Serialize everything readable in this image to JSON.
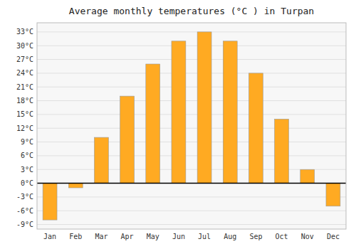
{
  "chart_data": {
    "type": "bar",
    "title": "Average monthly temperatures (°C ) in Turpan",
    "categories": [
      "Jan",
      "Feb",
      "Mar",
      "Apr",
      "May",
      "Jun",
      "Jul",
      "Aug",
      "Sep",
      "Oct",
      "Nov",
      "Dec"
    ],
    "values": [
      -8,
      -1,
      10,
      19,
      26,
      31,
      33,
      31,
      24,
      14,
      3,
      -5
    ],
    "color": "#FFAA22",
    "ylim": [
      -10,
      35
    ],
    "yticks": [
      {
        "value": -9,
        "label": "-9°C"
      },
      {
        "value": -6,
        "label": "-6°C"
      },
      {
        "value": -3,
        "label": "-3°C"
      },
      {
        "value": 0,
        "label": "0°C"
      },
      {
        "value": 3,
        "label": "3°C"
      },
      {
        "value": 6,
        "label": "6°C"
      },
      {
        "value": 9,
        "label": "9°C"
      },
      {
        "value": 12,
        "label": "12°C"
      },
      {
        "value": 15,
        "label": "15°C"
      },
      {
        "value": 18,
        "label": "18°C"
      },
      {
        "value": 21,
        "label": "21°C"
      },
      {
        "value": 24,
        "label": "24°C"
      },
      {
        "value": 27,
        "label": "27°C"
      },
      {
        "value": 30,
        "label": "30°C"
      },
      {
        "value": 33,
        "label": "33°C"
      }
    ],
    "grid": true
  }
}
